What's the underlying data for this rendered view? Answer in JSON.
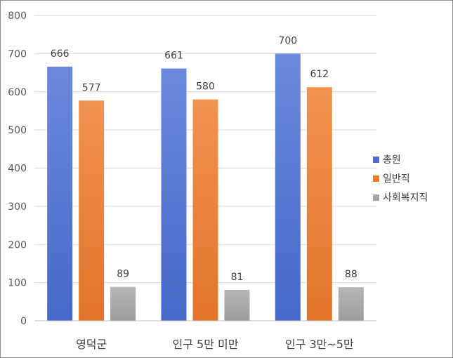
{
  "chart_data": {
    "type": "bar",
    "categories": [
      "영덕군",
      "인구 5만 미만",
      "인구 3만~5만"
    ],
    "series": [
      {
        "name": "총원",
        "values": [
          666,
          661,
          700
        ],
        "color": "#4a6fd6"
      },
      {
        "name": "일반직",
        "values": [
          577,
          580,
          612
        ],
        "color": "#f07b2c"
      },
      {
        "name": "사회복지직",
        "values": [
          89,
          81,
          88
        ],
        "color": "#a6a6a6"
      }
    ],
    "ylim": [
      0,
      800
    ],
    "yticks": [
      0,
      100,
      200,
      300,
      400,
      500,
      600,
      700,
      800
    ],
    "grid": true,
    "legend_position": "right",
    "title": "",
    "xlabel": "",
    "ylabel": ""
  }
}
